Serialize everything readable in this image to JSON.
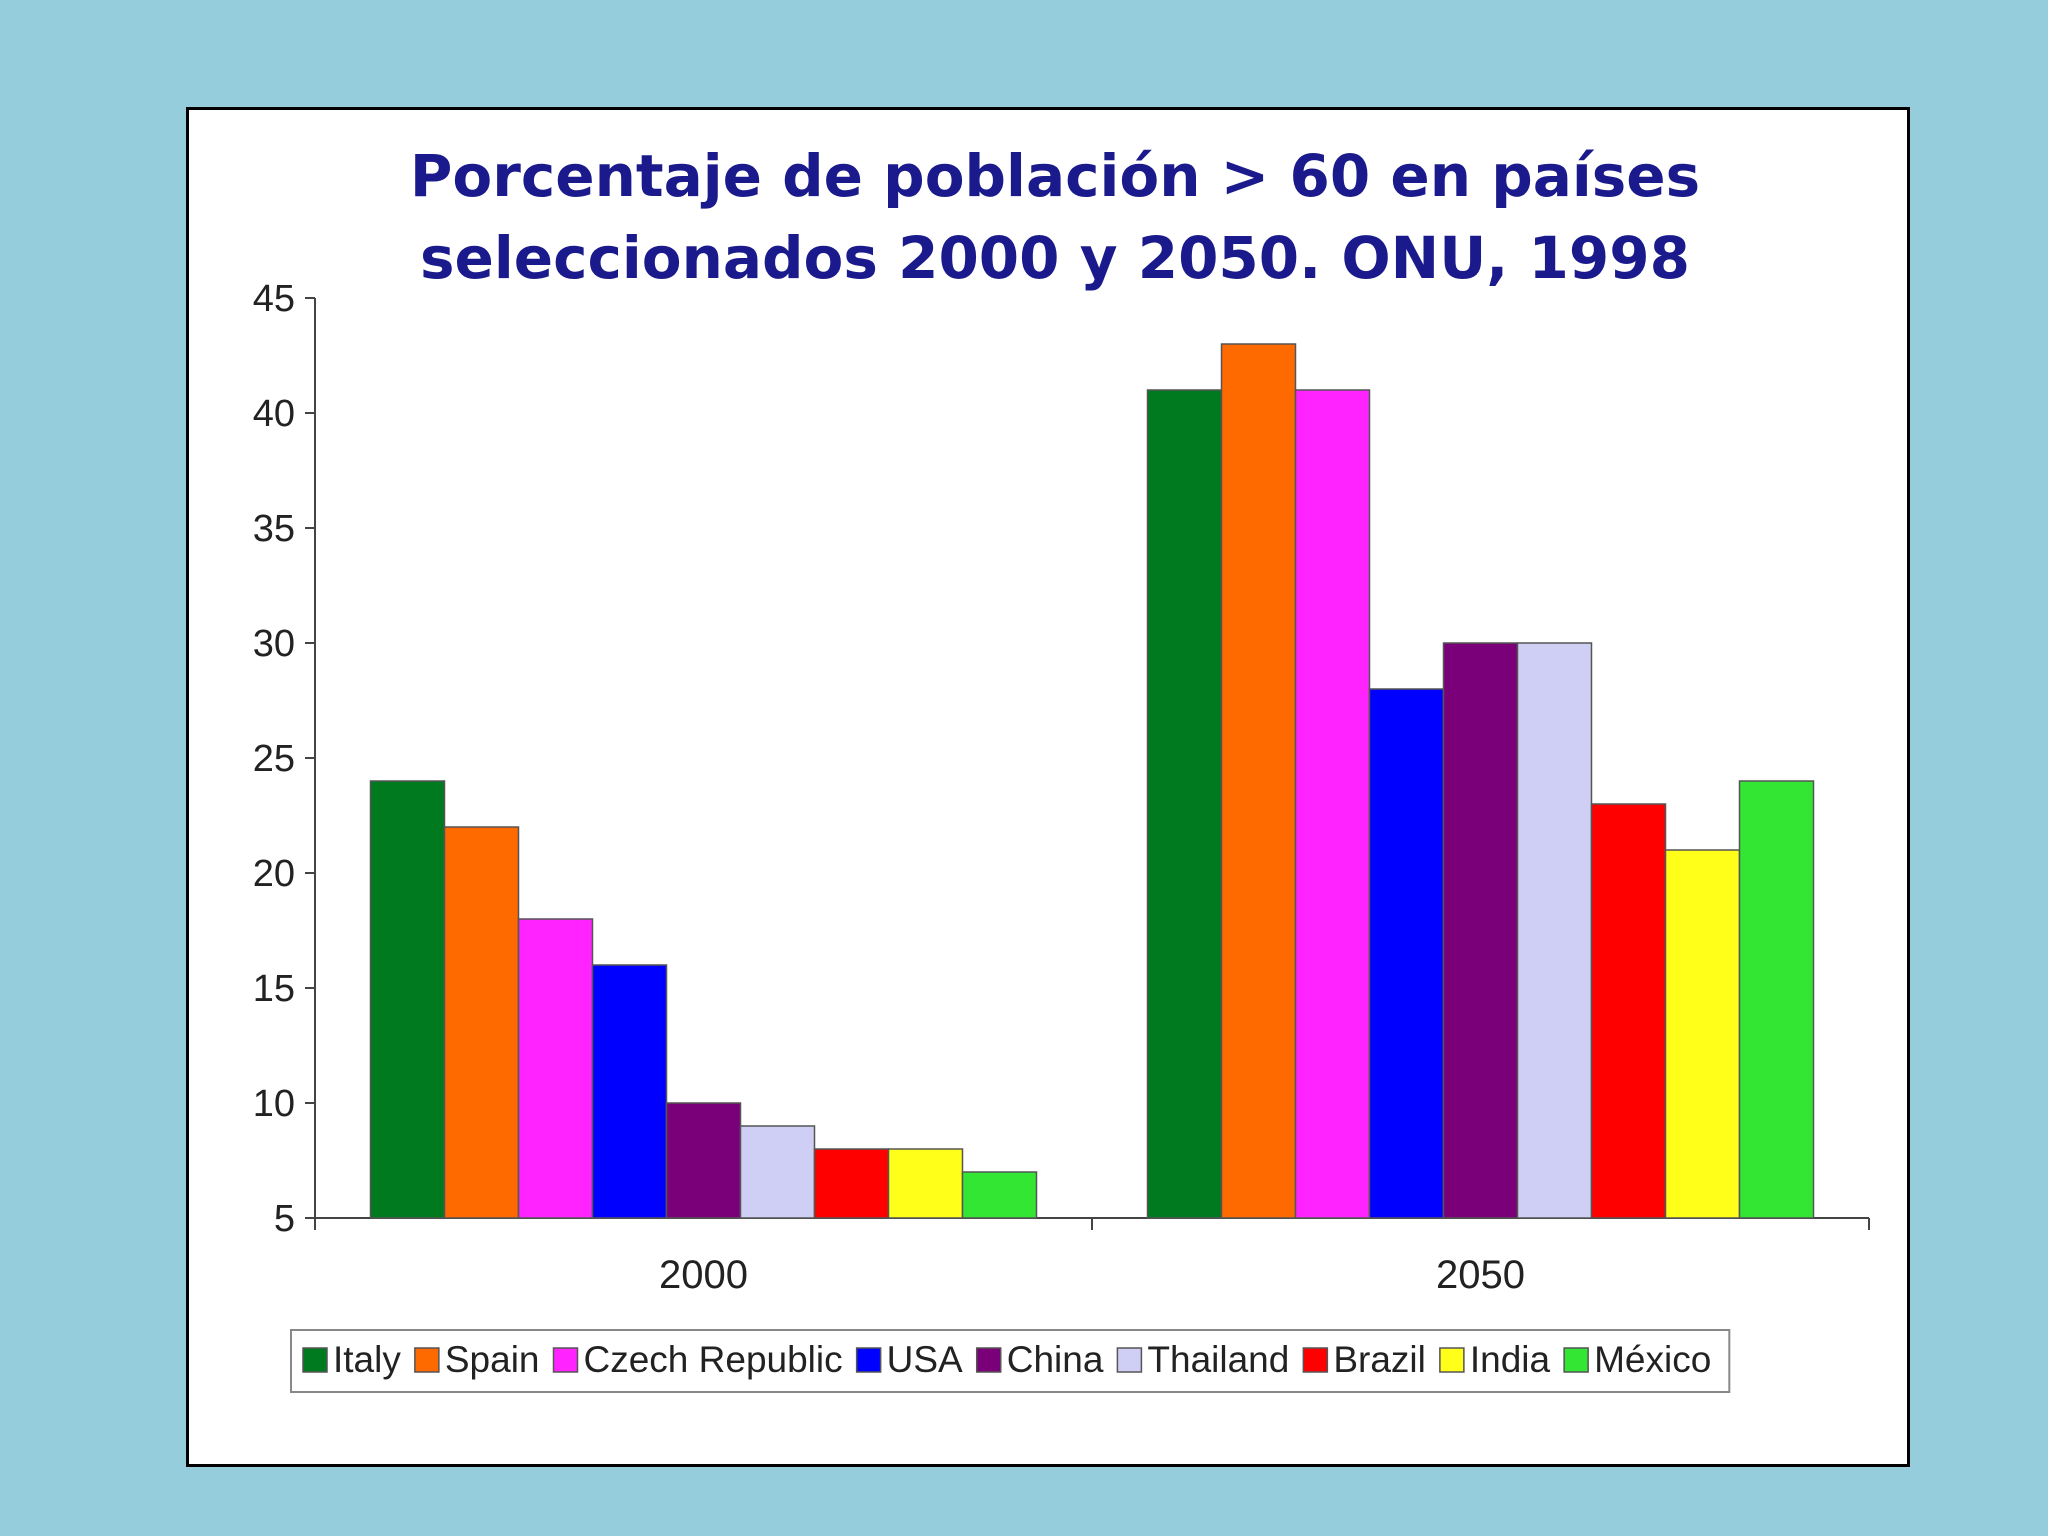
{
  "background_color": "#96cddc",
  "chart_data": {
    "type": "bar",
    "title": "Porcentaje de población > 60 en países",
    "subtitle": "seleccionados 2000 y 2050. ONU, 1998",
    "title_color": "#1a1a8c",
    "categories": [
      "2000",
      "2050"
    ],
    "ylim": [
      5,
      45
    ],
    "yticks": [
      "45",
      "40",
      "35",
      "30",
      "25",
      "20",
      "15",
      "10",
      "5"
    ],
    "grid": false,
    "legend_position": "bottom",
    "series": [
      {
        "name": "Italy",
        "color": "#007a1e",
        "values": [
          24,
          41
        ]
      },
      {
        "name": "Spain",
        "color": "#ff6a00",
        "values": [
          22,
          43
        ]
      },
      {
        "name": "Czech Republic",
        "color": "#ff24ff",
        "values": [
          18,
          41
        ]
      },
      {
        "name": "USA",
        "color": "#0000ff",
        "values": [
          16,
          28
        ]
      },
      {
        "name": "China",
        "color": "#7a007a",
        "values": [
          10,
          30
        ]
      },
      {
        "name": "Thailand",
        "color": "#cfcff5",
        "values": [
          9,
          30
        ]
      },
      {
        "name": "Brazil",
        "color": "#ff0000",
        "values": [
          8,
          23
        ]
      },
      {
        "name": "India",
        "color": "#ffff1a",
        "values": [
          8,
          21
        ]
      },
      {
        "name": "México",
        "color": "#33e633",
        "values": [
          7,
          24
        ]
      }
    ]
  }
}
